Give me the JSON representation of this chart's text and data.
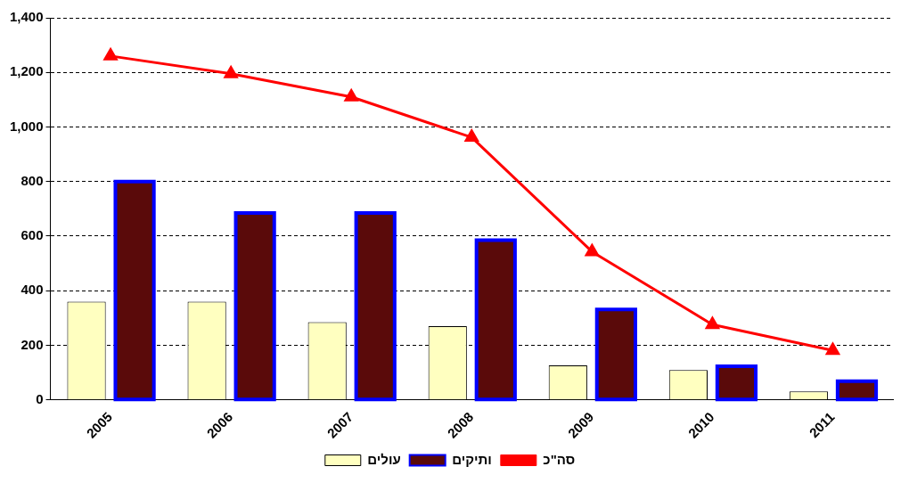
{
  "chart_data": {
    "type": "bar",
    "categories": [
      "2005",
      "2006",
      "2007",
      "2008",
      "2009",
      "2010",
      "2011"
    ],
    "series": [
      {
        "name": "עולים",
        "color": "#ffffc0",
        "values": [
          360,
          360,
          285,
          270,
          126,
          109,
          31
        ]
      },
      {
        "name": "ותיקים",
        "color": "#5a0a0a",
        "values": [
          800,
          685,
          685,
          585,
          331,
          123,
          68
        ]
      },
      {
        "name": "סה\"כ",
        "type": "line",
        "color": "#ff0000",
        "marker": "triangle",
        "values": [
          1260,
          1195,
          1110,
          962,
          543,
          276,
          181
        ]
      }
    ],
    "ylim": [
      0,
      1400
    ],
    "yticks": [
      {
        "value": 0,
        "label": "0"
      },
      {
        "value": 200,
        "label": "200"
      },
      {
        "value": 400,
        "label": "400"
      },
      {
        "value": 600,
        "label": "600"
      },
      {
        "value": 800,
        "label": "800"
      },
      {
        "value": 1000,
        "label": "1,000"
      },
      {
        "value": 1200,
        "label": "1,200"
      },
      {
        "value": 1400,
        "label": "1,400"
      }
    ],
    "grid": "y",
    "legend": "bottom"
  }
}
